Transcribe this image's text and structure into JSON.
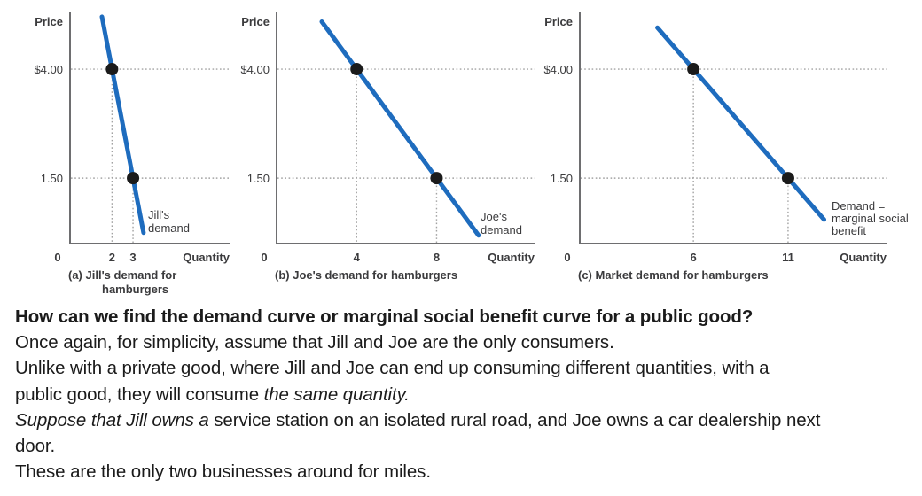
{
  "colors": {
    "curve_blue": "#1e6cbe",
    "point_black": "#1b1b1b",
    "axis_gray": "#6e6e70",
    "grid_gray": "#a2a2a2",
    "chart_text": "#3b3b3d",
    "body_text": "#1b1b1b",
    "background": "#ffffff"
  },
  "chart_data": [
    {
      "type": "line",
      "panel": "a",
      "caption_lines": [
        "(a) Jill's demand for",
        "hamburgers"
      ],
      "ylabel": "Price",
      "xlabel": "Quantity",
      "origin_label": "0",
      "y_ticks": [
        {
          "value": 4,
          "label": "$4.00"
        },
        {
          "value": 1.5,
          "label": "1.50"
        }
      ],
      "x_ticks": [
        {
          "value": 2,
          "label": "2"
        },
        {
          "value": 3,
          "label": "3"
        }
      ],
      "points": [
        {
          "x": 2,
          "y": 4
        },
        {
          "x": 3,
          "y": 1.5
        }
      ],
      "curve_label_lines": [
        "Jill's",
        "demand"
      ],
      "xlim": [
        0,
        7.6
      ],
      "ylim": [
        0,
        5.3
      ],
      "line_x_range": [
        1.52,
        3.5
      ],
      "grid": "dotted-guides"
    },
    {
      "type": "line",
      "panel": "b",
      "caption_lines": [
        "(b) Joe's demand for hamburgers"
      ],
      "ylabel": "Price",
      "xlabel": "Quantity",
      "origin_label": "0",
      "y_ticks": [
        {
          "value": 4,
          "label": "$4.00"
        },
        {
          "value": 1.5,
          "label": "1.50"
        }
      ],
      "x_ticks": [
        {
          "value": 4,
          "label": "4"
        },
        {
          "value": 8,
          "label": "8"
        }
      ],
      "points": [
        {
          "x": 4,
          "y": 4
        },
        {
          "x": 8,
          "y": 1.5
        }
      ],
      "curve_label_lines": [
        "Joe's",
        "demand"
      ],
      "xlim": [
        0,
        12.9
      ],
      "ylim": [
        0,
        5.3
      ],
      "line_x_range": [
        2.26,
        10.1
      ],
      "grid": "dotted-guides"
    },
    {
      "type": "line",
      "panel": "c",
      "caption_lines": [
        "(c) Market demand for hamburgers"
      ],
      "ylabel": "Price",
      "xlabel": "Quantity",
      "origin_label": "0",
      "y_ticks": [
        {
          "value": 4,
          "label": "$4.00"
        },
        {
          "value": 1.5,
          "label": "1.50"
        }
      ],
      "x_ticks": [
        {
          "value": 6,
          "label": "6"
        },
        {
          "value": 11,
          "label": "11"
        }
      ],
      "points": [
        {
          "x": 6,
          "y": 4
        },
        {
          "x": 11,
          "y": 1.5
        }
      ],
      "curve_label_lines": [
        "Demand =",
        "marginal social",
        "benefit"
      ],
      "xlim": [
        0,
        16.2
      ],
      "ylim": [
        0,
        5.3
      ],
      "line_x_range": [
        4.1,
        12.9
      ],
      "grid": "dotted-guides"
    }
  ],
  "text_block": {
    "heading": "How can we find the demand curve or marginal social benefit curve for a public good?",
    "lines": [
      {
        "segments": [
          {
            "t": "Once again, for simplicity, assume that Jill and Joe are the only consumers.",
            "style": "normal"
          }
        ]
      },
      {
        "segments": [
          {
            "t": "Unlike with a private good, where Jill and Joe can end up consuming different quantities, with a",
            "style": "normal"
          }
        ]
      },
      {
        "segments": [
          {
            "t": "public good, they will consume ",
            "style": "normal"
          },
          {
            "t": "the same quantity.",
            "style": "italic"
          }
        ]
      },
      {
        "segments": [
          {
            "t": "Suppose that Jill owns a ",
            "style": "italic"
          },
          {
            "t": "service station on an isolated rural road, and Joe owns a car dealership next",
            "style": "normal"
          }
        ]
      },
      {
        "segments": [
          {
            "t": "door.",
            "style": "normal"
          }
        ]
      },
      {
        "segments": [
          {
            "t": "These are the only two businesses around for miles.",
            "style": "normal"
          }
        ]
      }
    ]
  }
}
